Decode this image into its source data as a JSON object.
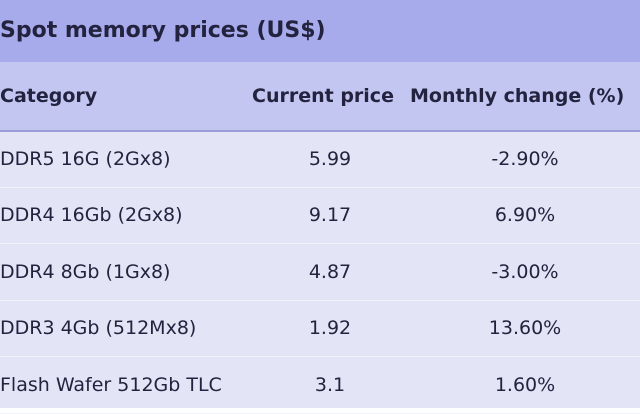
{
  "title": "Spot memory prices (US$)",
  "table": {
    "header": [
      "Category",
      "Current price",
      "Monthly change (%)"
    ],
    "rows": [
      [
        "DDR5 16G (2Gx8)",
        "5.99",
        "-2.90%"
      ],
      [
        "DDR4 16Gb (2Gx8)",
        "9.17",
        "6.90%"
      ],
      [
        "DDR4 8Gb (1Gx8)",
        "4.87",
        "-3.00%"
      ],
      [
        "DDR3 4Gb (512Mx8)",
        "1.92",
        "13.60%"
      ],
      [
        "Flash Wafer 512Gb TLC",
        "3.1",
        "1.60%"
      ]
    ]
  }
}
